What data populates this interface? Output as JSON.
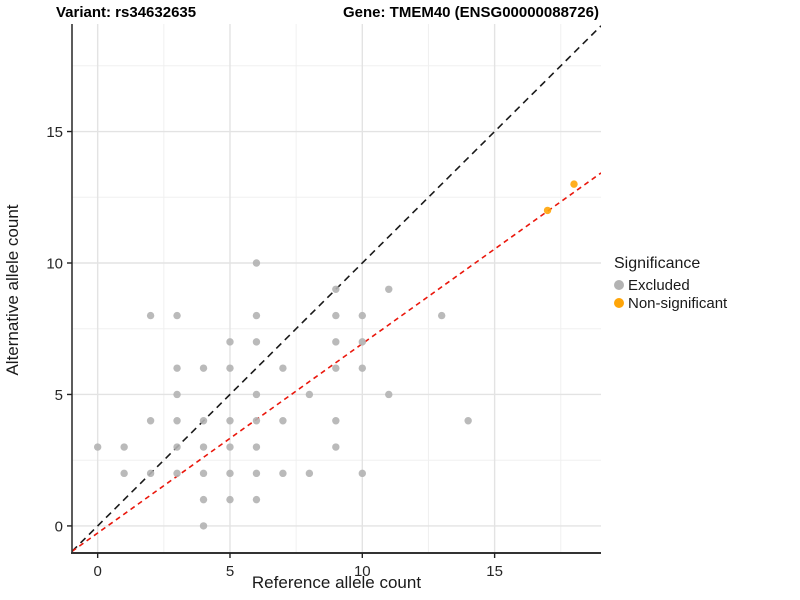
{
  "chart_data": {
    "type": "scatter",
    "titles": {
      "left": "Variant: rs34632635",
      "right": "Gene: TMEM40 (ENSG00000088726)"
    },
    "xlabel": "Reference allele count",
    "ylabel": "Alternative allele count",
    "xlim": [
      -0.97,
      19.02
    ],
    "ylim": [
      -1.03,
      19.09
    ],
    "xticks": [
      0,
      5,
      10,
      15
    ],
    "yticks": [
      0,
      5,
      10,
      15
    ],
    "xminor": [
      2.5,
      7.5,
      12.5,
      17.5
    ],
    "yminor": [
      2.5,
      7.5,
      12.5,
      17.5
    ],
    "grid": "major+minor",
    "legend": {
      "title": "Significance",
      "position": "right"
    },
    "series": [
      {
        "name": "Excluded",
        "color": "#b3b3b3",
        "points": [
          [
            0,
            3
          ],
          [
            1,
            2
          ],
          [
            1,
            3
          ],
          [
            2,
            2
          ],
          [
            2,
            4
          ],
          [
            2,
            8
          ],
          [
            3,
            2
          ],
          [
            3,
            3
          ],
          [
            3,
            4
          ],
          [
            3,
            5
          ],
          [
            3,
            6
          ],
          [
            3,
            8
          ],
          [
            4,
            0
          ],
          [
            4,
            1
          ],
          [
            4,
            2
          ],
          [
            4,
            3
          ],
          [
            4,
            4
          ],
          [
            4,
            6
          ],
          [
            5,
            1
          ],
          [
            5,
            2
          ],
          [
            5,
            3
          ],
          [
            5,
            4
          ],
          [
            5,
            6
          ],
          [
            5,
            7
          ],
          [
            6,
            1
          ],
          [
            6,
            2
          ],
          [
            6,
            3
          ],
          [
            6,
            4
          ],
          [
            6,
            5
          ],
          [
            6,
            7
          ],
          [
            6,
            8
          ],
          [
            6,
            10
          ],
          [
            7,
            2
          ],
          [
            7,
            4
          ],
          [
            7,
            6
          ],
          [
            8,
            2
          ],
          [
            8,
            5
          ],
          [
            9,
            3
          ],
          [
            9,
            4
          ],
          [
            9,
            6
          ],
          [
            9,
            7
          ],
          [
            9,
            8
          ],
          [
            9,
            9
          ],
          [
            10,
            2
          ],
          [
            10,
            6
          ],
          [
            10,
            7
          ],
          [
            10,
            8
          ],
          [
            11,
            5
          ],
          [
            11,
            9
          ],
          [
            13,
            8
          ],
          [
            14,
            4
          ]
        ]
      },
      {
        "name": "Non-significant",
        "color": "#ffa508",
        "points": [
          [
            17,
            12
          ],
          [
            18,
            13
          ]
        ]
      }
    ],
    "lines": [
      {
        "name": "identity-line",
        "color": "#1a1a1a",
        "dash": "7,5",
        "slope": 1,
        "intercept": 0
      },
      {
        "name": "fit-line",
        "color": "#ea170c",
        "dash": "5,4",
        "slope": 0.72,
        "intercept": -0.27
      }
    ],
    "colors": {
      "grid_major": "#e3e3e3",
      "grid_minor": "#f0f0f0",
      "axis_line": "#333333",
      "tick_label": "#262626",
      "panel_background": "#ffffff"
    }
  }
}
